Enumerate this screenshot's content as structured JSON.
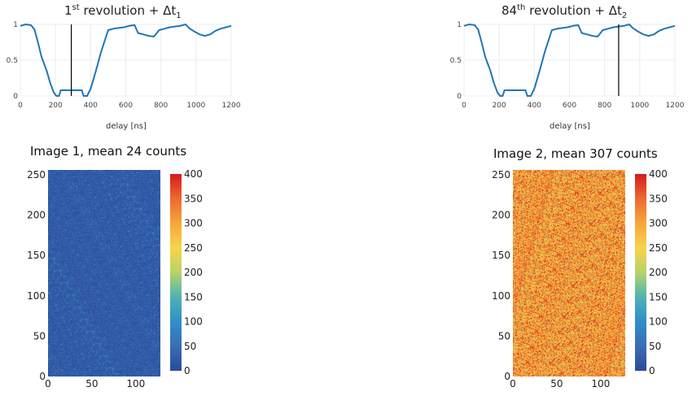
{
  "chart_data": [
    {
      "type": "line",
      "title_main": "1",
      "title_sup": "st",
      "title_rest": " revolution + Δt",
      "title_sub": "1",
      "xlabel": "delay [ns]",
      "xlim": [
        0,
        1200
      ],
      "ylim": [
        0,
        1
      ],
      "xticks": [
        "0",
        "200",
        "400",
        "600",
        "800",
        "1000",
        "1200"
      ],
      "yticks": [
        "0",
        "0.5",
        "1"
      ],
      "line_color": "#1f77b4",
      "marker_x": 290,
      "series": [
        {
          "x": [
            0,
            30,
            60,
            80,
            100,
            120,
            150,
            170,
            190,
            205,
            215,
            220,
            230,
            260,
            290,
            320,
            350,
            360,
            380,
            400,
            430,
            460,
            500,
            530,
            560,
            590,
            620,
            650,
            670,
            700,
            730,
            760,
            790,
            820,
            850,
            880,
            910,
            940,
            960,
            990,
            1020,
            1050,
            1080,
            1110,
            1140,
            1170,
            1200
          ],
          "y": [
            0.98,
            1.0,
            0.99,
            0.93,
            0.75,
            0.55,
            0.35,
            0.18,
            0.05,
            0.0,
            0.0,
            0.0,
            0.08,
            0.08,
            0.08,
            0.08,
            0.08,
            0.0,
            0.0,
            0.1,
            0.35,
            0.62,
            0.92,
            0.94,
            0.95,
            0.96,
            0.98,
            0.99,
            0.88,
            0.86,
            0.84,
            0.83,
            0.92,
            0.94,
            0.96,
            0.97,
            0.98,
            1.0,
            0.95,
            0.9,
            0.86,
            0.84,
            0.86,
            0.91,
            0.94,
            0.96,
            0.98
          ]
        }
      ]
    },
    {
      "type": "line",
      "title_main": "84",
      "title_sup": "th",
      "title_rest": " revolution + Δt",
      "title_sub": "2",
      "xlabel": "delay [ns]",
      "xlim": [
        0,
        1200
      ],
      "ylim": [
        0,
        1
      ],
      "xticks": [
        "0",
        "200",
        "400",
        "600",
        "800",
        "1000",
        "1200"
      ],
      "yticks": [
        "0",
        "0.5",
        "1"
      ],
      "line_color": "#1f77b4",
      "marker_x": 880,
      "series": [
        {
          "x": [
            0,
            30,
            60,
            80,
            100,
            120,
            150,
            170,
            190,
            205,
            215,
            220,
            230,
            260,
            290,
            320,
            350,
            360,
            380,
            400,
            430,
            460,
            500,
            530,
            560,
            590,
            620,
            650,
            670,
            700,
            730,
            760,
            790,
            820,
            850,
            880,
            910,
            940,
            960,
            990,
            1020,
            1050,
            1080,
            1110,
            1140,
            1170,
            1200
          ],
          "y": [
            0.98,
            1.0,
            0.99,
            0.93,
            0.75,
            0.55,
            0.35,
            0.18,
            0.05,
            0.0,
            0.0,
            0.0,
            0.08,
            0.08,
            0.08,
            0.08,
            0.08,
            0.0,
            0.0,
            0.1,
            0.35,
            0.62,
            0.92,
            0.94,
            0.95,
            0.96,
            0.98,
            0.99,
            0.88,
            0.86,
            0.84,
            0.83,
            0.92,
            0.94,
            0.96,
            0.97,
            0.98,
            1.0,
            0.95,
            0.9,
            0.86,
            0.84,
            0.86,
            0.91,
            0.94,
            0.96,
            0.98
          ]
        }
      ]
    },
    {
      "type": "heatmap",
      "title": "Image 1, mean 24 counts",
      "mean": 24,
      "xlim": [
        0,
        128
      ],
      "ylim": [
        0,
        256
      ],
      "xticks": [
        "0",
        "50",
        "100"
      ],
      "yticks": [
        "0",
        "50",
        "100",
        "150",
        "200",
        "250"
      ],
      "colorbar_range": [
        0,
        400
      ],
      "colorbar_ticks": [
        "0",
        "50",
        "100",
        "150",
        "200",
        "250",
        "300",
        "350",
        "400"
      ],
      "colorscale": [
        "#2b4b9b",
        "#3a6cb4",
        "#2f8fcb",
        "#4fb3b0",
        "#b6d36a",
        "#f7d44a",
        "#f5a73a",
        "#ed6a2f",
        "#d7191c"
      ]
    },
    {
      "type": "heatmap",
      "title": "Image 2, mean 307 counts",
      "mean": 307,
      "xlim": [
        0,
        128
      ],
      "ylim": [
        0,
        256
      ],
      "xticks": [
        "0",
        "50",
        "100"
      ],
      "yticks": [
        "0",
        "50",
        "100",
        "150",
        "200",
        "250"
      ],
      "colorbar_range": [
        0,
        400
      ],
      "colorbar_ticks": [
        "0",
        "50",
        "100",
        "150",
        "200",
        "250",
        "300",
        "350",
        "400"
      ],
      "colorscale": [
        "#2b4b9b",
        "#3a6cb4",
        "#2f8fcb",
        "#4fb3b0",
        "#b6d36a",
        "#f7d44a",
        "#f5a73a",
        "#ed6a2f",
        "#d7191c"
      ]
    }
  ]
}
